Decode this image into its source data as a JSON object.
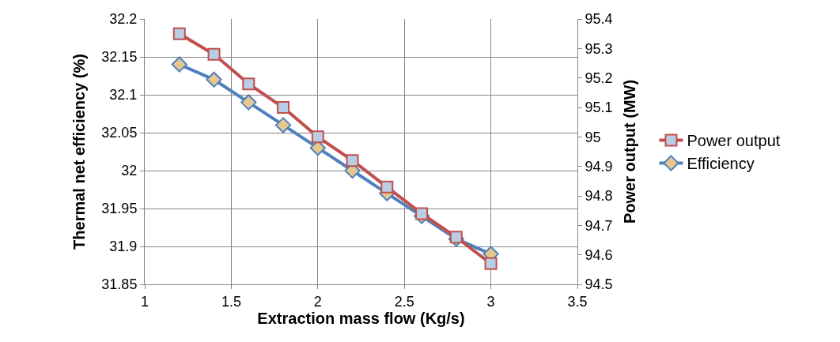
{
  "chart_data": {
    "type": "line",
    "xlabel": "Extraction mass flow (Kg/s)",
    "ylabel": "Thermal net efficiency (%)",
    "y2label": "Power output (MW)",
    "x": [
      1.2,
      1.4,
      1.6,
      1.8,
      2.0,
      2.2,
      2.4,
      2.6,
      2.8,
      3.0
    ],
    "series": [
      {
        "name": "Power output",
        "color": "#c0504d",
        "axis": "y2",
        "marker": "square",
        "values": [
          95.35,
          95.28,
          95.18,
          95.1,
          95.0,
          94.92,
          94.83,
          94.74,
          94.66,
          94.57
        ]
      },
      {
        "name": "Efficiency",
        "color": "#4f81bd",
        "marker": "diamond",
        "values": [
          32.14,
          32.12,
          32.09,
          32.06,
          32.03,
          32.0,
          31.97,
          31.94,
          31.91,
          31.89
        ]
      }
    ],
    "xlim": [
      1,
      3.5
    ],
    "xticks": [
      1,
      1.5,
      2,
      2.5,
      3,
      3.5
    ],
    "ylim": [
      31.85,
      32.2
    ],
    "yticks": [
      31.85,
      31.9,
      31.95,
      32,
      32.05,
      32.1,
      32.15,
      32.2
    ],
    "y2lim": [
      94.5,
      95.4
    ],
    "y2ticks": [
      94.5,
      94.6,
      94.7,
      94.8,
      94.9,
      95,
      95.1,
      95.2,
      95.3,
      95.4
    ],
    "grid": true,
    "legend": "right",
    "line_style": "solid"
  }
}
